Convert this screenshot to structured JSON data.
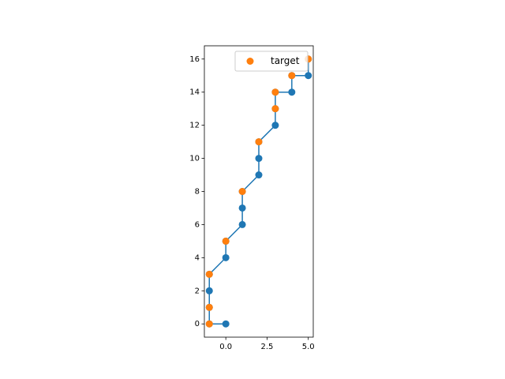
{
  "chart_data": {
    "type": "line",
    "series": [
      {
        "color": "#1f77b4",
        "marker": true,
        "x": [
          0,
          -1,
          -1,
          -1,
          -1,
          0,
          0,
          1,
          1,
          1,
          2,
          2,
          2,
          3,
          3,
          3,
          4,
          4,
          5,
          5
        ],
        "values": [
          0,
          0,
          1,
          2,
          3,
          4,
          5,
          6,
          7,
          8,
          9,
          10,
          11,
          12,
          13,
          14,
          14,
          15,
          15,
          16
        ]
      },
      {
        "name": "target",
        "color": "#ff7f0e",
        "type": "scatter",
        "x": [
          -1,
          -1,
          -1,
          0,
          1,
          2,
          3,
          3,
          4,
          5
        ],
        "values": [
          0,
          1,
          3,
          5,
          8,
          11,
          13,
          14,
          15,
          16
        ]
      }
    ],
    "xlim": [
      -1.3,
      5.3
    ],
    "xticks": [
      {
        "value": 0,
        "label": "0.0"
      },
      {
        "value": 2.5,
        "label": "2.5"
      },
      {
        "value": 5,
        "label": "5.0"
      }
    ],
    "ylim": [
      -0.8,
      16.8
    ],
    "yticks": [
      0,
      2,
      4,
      6,
      8,
      10,
      12,
      14,
      16
    ],
    "legend": "upper right"
  }
}
